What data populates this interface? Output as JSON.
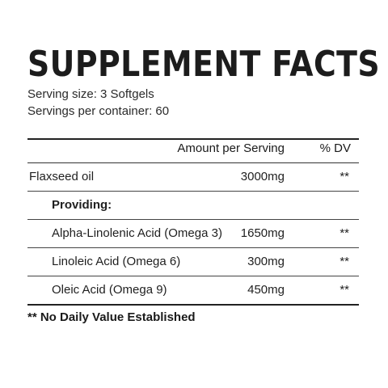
{
  "title": "SUPPLEMENT FACTS",
  "serving_size": "Serving size: 3 Softgels",
  "servings_per_container": "Servings per container: 60",
  "headers": {
    "amount": "Amount per Serving",
    "dv": "% DV"
  },
  "rows": [
    {
      "name": "Flaxseed oil",
      "amount": "3000mg",
      "dv": "**"
    },
    {
      "name": "Providing:",
      "amount": "",
      "dv": ""
    },
    {
      "name": "Alpha-Linolenic Acid (Omega 3)",
      "amount": "1650mg",
      "dv": "**"
    },
    {
      "name": "Linoleic Acid (Omega 6)",
      "amount": "300mg",
      "dv": "**"
    },
    {
      "name": "Oleic Acid (Omega 9)",
      "amount": "450mg",
      "dv": "**"
    }
  ],
  "footnote": "** No Daily Value Established"
}
